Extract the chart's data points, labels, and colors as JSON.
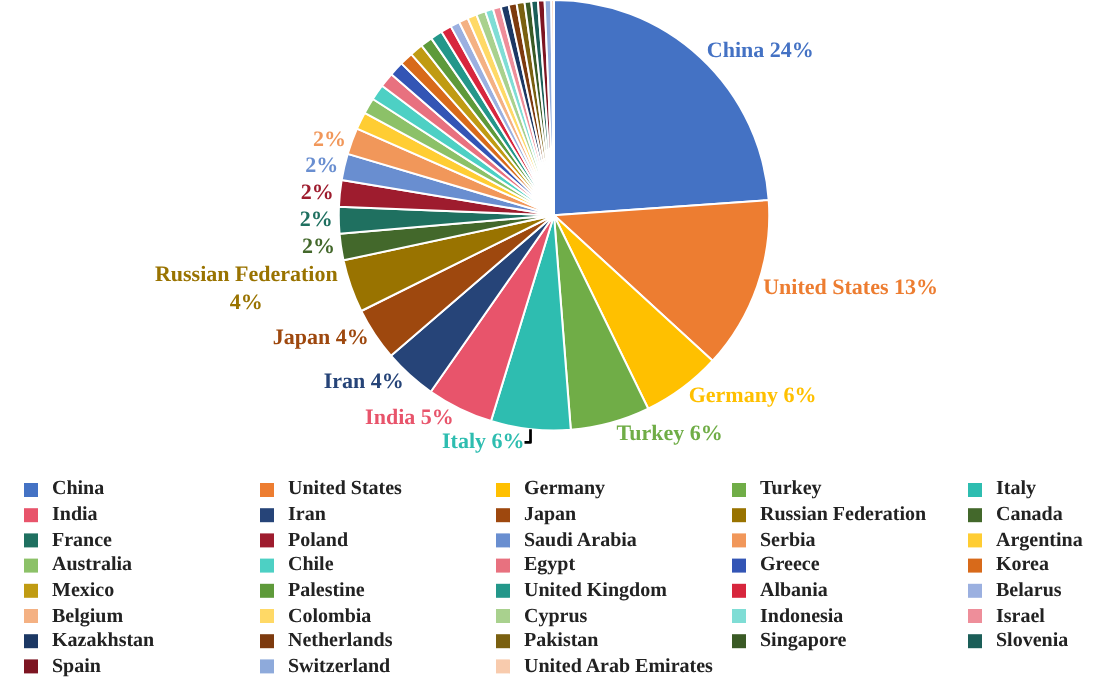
{
  "chart_data": {
    "type": "pie",
    "categories": [
      "China",
      "United States",
      "Germany",
      "Turkey",
      "Italy",
      "India",
      "Iran",
      "Japan",
      "Russian Federation",
      "Canada",
      "France",
      "Poland",
      "Saudi Arabia",
      "Serbia",
      "Argentina",
      "Australia",
      "Chile",
      "Egypt",
      "Greece",
      "Korea",
      "Mexico",
      "Palestine",
      "United Kingdom",
      "Albania",
      "Belarus",
      "Belgium",
      "Colombia",
      "Cyprus",
      "Indonesia",
      "Israel",
      "Kazakhstan",
      "Netherlands",
      "Pakistan",
      "Singapore",
      "Slovenia",
      "Spain",
      "Switzerland",
      "United Arab Emirates"
    ],
    "values": [
      24,
      13,
      6,
      6,
      6,
      5,
      4,
      4,
      4,
      2,
      2,
      2,
      2,
      2,
      1.3,
      1.2,
      1.2,
      1.1,
      1.1,
      1.0,
      1.0,
      0.9,
      0.9,
      0.8,
      0.7,
      0.7,
      0.7,
      0.7,
      0.6,
      0.6,
      0.6,
      0.6,
      0.6,
      0.5,
      0.5,
      0.5,
      0.5,
      0.2
    ],
    "value_labels": [
      "China 24%",
      "United States 13%",
      "Germany 6%",
      "Turkey 6%",
      "Italy 6%",
      "India 5%",
      "Iran 4%",
      "Japan 4%",
      "Russian Federation\n4%",
      "2%",
      "2%",
      "2%",
      "2%",
      "2%",
      null,
      null,
      null,
      null,
      null,
      null,
      null,
      null,
      null,
      null,
      null,
      null,
      null,
      null,
      null,
      null,
      null,
      null,
      null,
      null,
      null,
      null,
      null,
      null
    ],
    "colors": [
      "#4472c4",
      "#ed7d31",
      "#ffc000",
      "#70ad47",
      "#2ebdb0",
      "#e8546b",
      "#264478",
      "#9e480e",
      "#997300",
      "#43682b",
      "#1f7060",
      "#9e1c2e",
      "#698ed0",
      "#f1975a",
      "#ffcd33",
      "#8cc168",
      "#4dd0c4",
      "#e8717f",
      "#3355b5",
      "#d86a1a",
      "#c09b12",
      "#5e9a3a",
      "#23978a",
      "#d7263d",
      "#9bb0e0",
      "#f4b183",
      "#ffd966",
      "#a9d18e",
      "#7fddd5",
      "#ee8e9a",
      "#1c3864",
      "#7d3a0e",
      "#7a6010",
      "#3a5a25",
      "#1b5e58",
      "#7d1522",
      "#8eaadb",
      "#f8cbad"
    ],
    "legend": "bottom"
  }
}
